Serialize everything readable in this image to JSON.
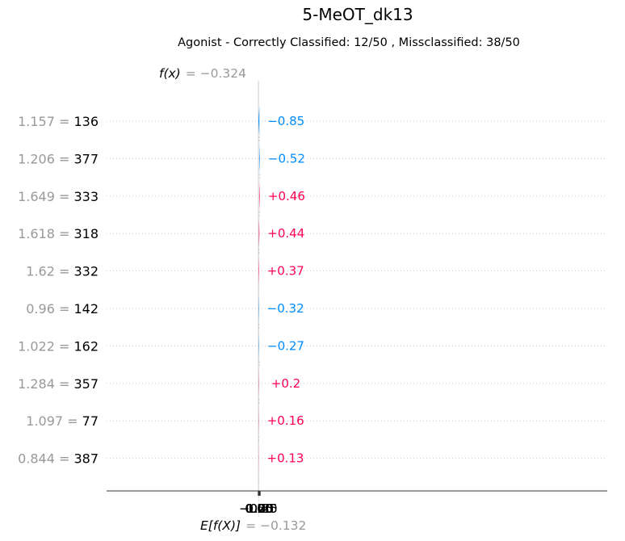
{
  "chart_data": {
    "type": "waterfall",
    "title": "5-MeOT_dk13",
    "subtitle": "Agonist - Correctly Classified: 12/50 , Missclassified: 38/50",
    "fx_label": "f(x)",
    "fx_value_text": "= −0.324",
    "fx": -0.324,
    "efx_label": "E[f(X)]",
    "efx_value_text": "= −0.132",
    "efx": -0.132,
    "xlim": [
      -0.55,
      1.28
    ],
    "xticks": [
      -0.5,
      -0.25,
      0.0,
      0.25,
      0.5,
      0.75,
      1.0,
      1.25
    ],
    "xtick_labels": [
      "−0.50",
      "−0.25",
      "0.00",
      "0.25",
      "0.50",
      "0.75",
      "1.00",
      "1.25"
    ],
    "features": [
      {
        "value": "1.157",
        "name": "136",
        "start": 0.526,
        "end": -0.324,
        "label": "−0.85"
      },
      {
        "value": "1.206",
        "name": "377",
        "start": 1.046,
        "end": 0.526,
        "label": "−0.52"
      },
      {
        "value": "1.649",
        "name": "333",
        "start": 0.586,
        "end": 1.046,
        "label": "+0.46"
      },
      {
        "value": "1.618",
        "name": "318",
        "start": 0.146,
        "end": 0.586,
        "label": "+0.44"
      },
      {
        "value": "1.62",
        "name": "332",
        "start": -0.224,
        "end": 0.146,
        "label": "+0.37"
      },
      {
        "value": "0.96",
        "name": "142",
        "start": 0.096,
        "end": -0.224,
        "label": "−0.32"
      },
      {
        "value": "1.022",
        "name": "162",
        "start": 0.366,
        "end": 0.096,
        "label": "−0.27"
      },
      {
        "value": "1.284",
        "name": "357",
        "start": 0.166,
        "end": 0.366,
        "label": "+0.2"
      },
      {
        "value": "1.097",
        "name": "77",
        "start": -0.002,
        "end": 0.166,
        "label": "+0.16"
      },
      {
        "value": "0.844",
        "name": "387",
        "start": -0.132,
        "end": -0.002,
        "label": "+0.13"
      }
    ],
    "colors": {
      "positive": "#ff0051",
      "negative": "#008bfb",
      "axis": "#333333",
      "muted": "#999999",
      "grid": "#cccccc"
    }
  }
}
